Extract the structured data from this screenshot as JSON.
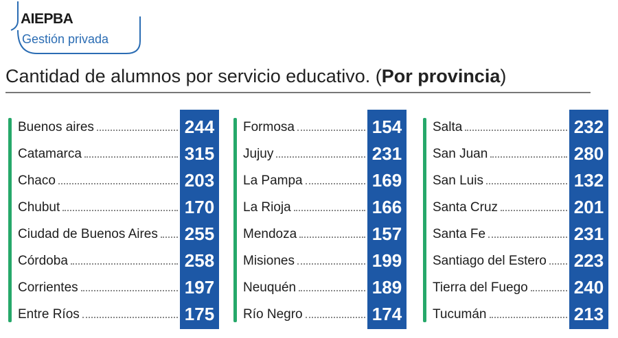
{
  "header": {
    "logo_title": "AIEPBA",
    "logo_subtitle": "Gestión privada",
    "title_prefix": "Cantidad de alumnos por servicio educativo. (",
    "title_bold": "Por provincia",
    "title_suffix": ")"
  },
  "columns": [
    {
      "rows": [
        {
          "name": "Buenos aires",
          "value": 244
        },
        {
          "name": "Catamarca",
          "value": 315
        },
        {
          "name": "Chaco",
          "value": 203
        },
        {
          "name": "Chubut",
          "value": 170
        },
        {
          "name": "Ciudad de Buenos Aires",
          "value": 255
        },
        {
          "name": "Córdoba",
          "value": 258
        },
        {
          "name": "Corrientes",
          "value": 197
        },
        {
          "name": "Entre Ríos",
          "value": 175
        }
      ]
    },
    {
      "rows": [
        {
          "name": "Formosa",
          "value": 154
        },
        {
          "name": "Jujuy",
          "value": 231
        },
        {
          "name": "La Pampa",
          "value": 169
        },
        {
          "name": "La Rioja",
          "value": 166
        },
        {
          "name": "Mendoza",
          "value": 157
        },
        {
          "name": "Misiones",
          "value": 199
        },
        {
          "name": "Neuquén",
          "value": 189
        },
        {
          "name": "Río Negro",
          "value": 174
        }
      ]
    },
    {
      "rows": [
        {
          "name": "Salta",
          "value": 232
        },
        {
          "name": "San Juan",
          "value": 280
        },
        {
          "name": "San Luis",
          "value": 132
        },
        {
          "name": "Santa Cruz",
          "value": 201
        },
        {
          "name": "Santa Fe",
          "value": 231
        },
        {
          "name": "Santiago del Estero",
          "value": 223
        },
        {
          "name": "Tierra del Fuego",
          "value": 240
        },
        {
          "name": "Tucumán",
          "value": 213
        }
      ]
    }
  ]
}
